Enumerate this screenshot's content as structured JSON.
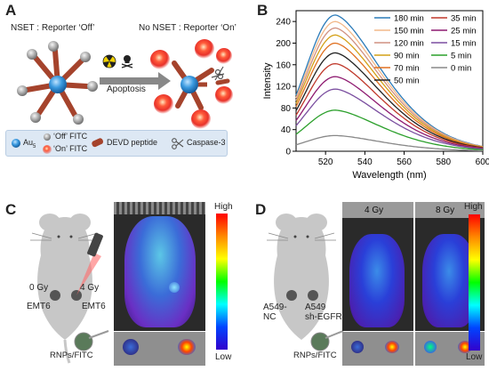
{
  "panels": {
    "A": {
      "label": "A",
      "left_title": "NSET : Reporter ‘Off’",
      "right_title": "No NSET : Reporter ‘On’",
      "arrow_label": "Apoptosis",
      "legend": {
        "au": "Au",
        "au_sub": "5",
        "off_fitc": "‘Off’ FITC",
        "on_fitc": "‘On’ FITC",
        "peptide": "DEVD peptide",
        "caspase": "Caspase-3"
      }
    },
    "B": {
      "label": "B"
    },
    "C": {
      "label": "C",
      "dose_left": "0 Gy",
      "dose_right": "4 Gy",
      "tumor_left": "EMT6",
      "tumor_right": "EMT6",
      "probe": "RNPs/FITC",
      "scale_high": "High",
      "scale_low": "Low"
    },
    "D": {
      "label": "D",
      "dose_1": "4 Gy",
      "dose_2": "8 Gy",
      "tumor_left": "A549-\nNC",
      "tumor_right": "A549\nsh-EGFR",
      "probe": "RNPs/FITC",
      "scale_high": "High",
      "scale_low": "Low"
    }
  },
  "colors": {
    "au_blue": "#2f8fd8",
    "off_grey": "#9a9a9a",
    "on_red": "#e8322a",
    "peptide_brown": "#a5432c",
    "mouse_grey": "#c7c7c7",
    "legend_bg": "#dde8f4"
  },
  "chart_data": {
    "type": "line",
    "xlabel": "Wavelength (nm)",
    "ylabel": "Intensity",
    "xlim": [
      505,
      600
    ],
    "ylim": [
      0,
      260
    ],
    "xticks": [
      520,
      540,
      560,
      580,
      600
    ],
    "yticks": [
      0,
      40,
      80,
      120,
      160,
      200,
      240
    ],
    "peak_x": 525,
    "legend_position": "top-right",
    "series": [
      {
        "name": "180 min",
        "peak": 252,
        "color": "#2b7bb9"
      },
      {
        "name": "150 min",
        "peak": 240,
        "color": "#f2b98a"
      },
      {
        "name": "120 min",
        "peak": 228,
        "color": "#d09080"
      },
      {
        "name": "90 min",
        "peak": 215,
        "color": "#d4a017"
      },
      {
        "name": "70 min",
        "peak": 200,
        "color": "#e07020"
      },
      {
        "name": "50 min",
        "peak": 182,
        "color": "#222222"
      },
      {
        "name": "35 min",
        "peak": 162,
        "color": "#c0392b"
      },
      {
        "name": "25 min",
        "peak": 138,
        "color": "#8e1a70"
      },
      {
        "name": "15 min",
        "peak": 115,
        "color": "#7b4fa0"
      },
      {
        "name": "5 min",
        "peak": 76,
        "color": "#2ca02c"
      },
      {
        "name": "0 min",
        "peak": 29,
        "color": "#888888"
      }
    ]
  }
}
